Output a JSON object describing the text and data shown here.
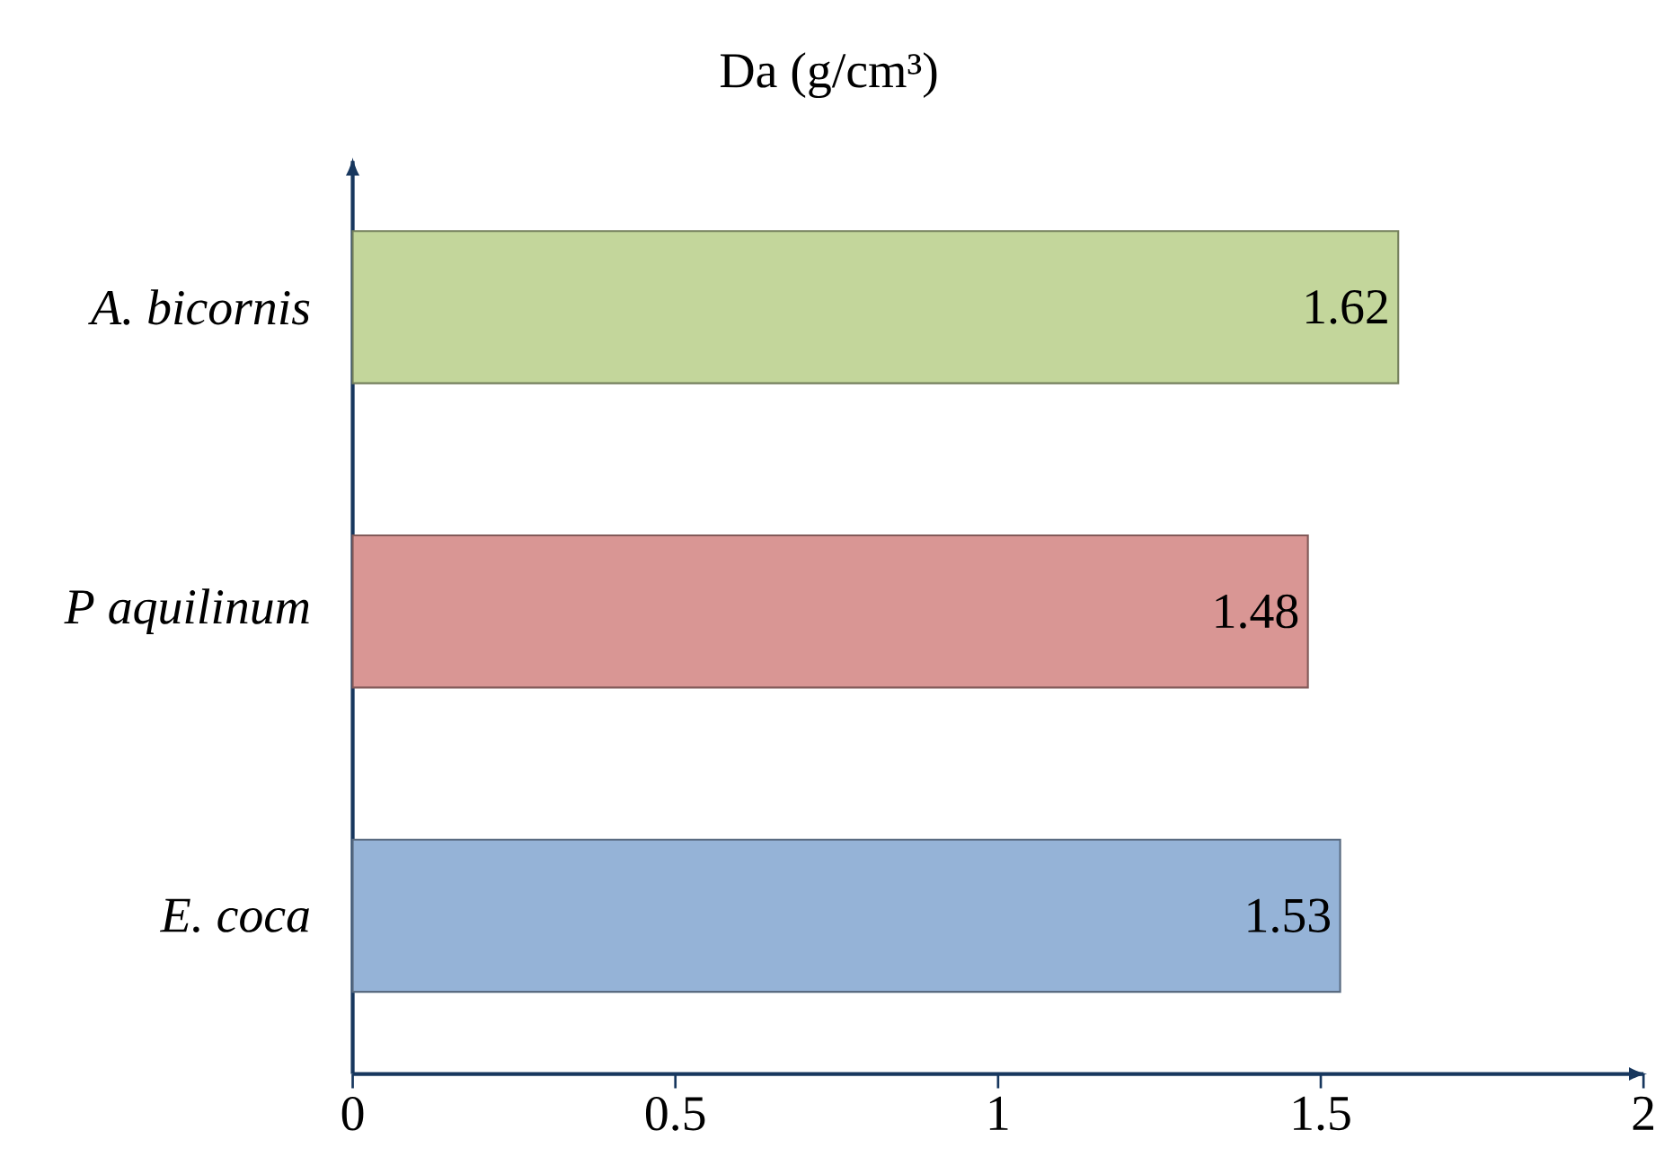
{
  "chart_data": {
    "type": "bar",
    "orientation": "horizontal",
    "title": "Da (g/cm³)",
    "categories": [
      "*A. bicornis*",
      "*P aquilinum*",
      "*E. coca*"
    ],
    "values": [
      1.62,
      1.48,
      1.53
    ],
    "colors": [
      "#c3d69b",
      "#d99694",
      "#95b3d7"
    ],
    "data_labels": true,
    "xlim": [
      0,
      2
    ],
    "xticks": [
      0,
      0.5,
      1,
      1.5,
      2
    ],
    "grid": false,
    "legend": false
  }
}
